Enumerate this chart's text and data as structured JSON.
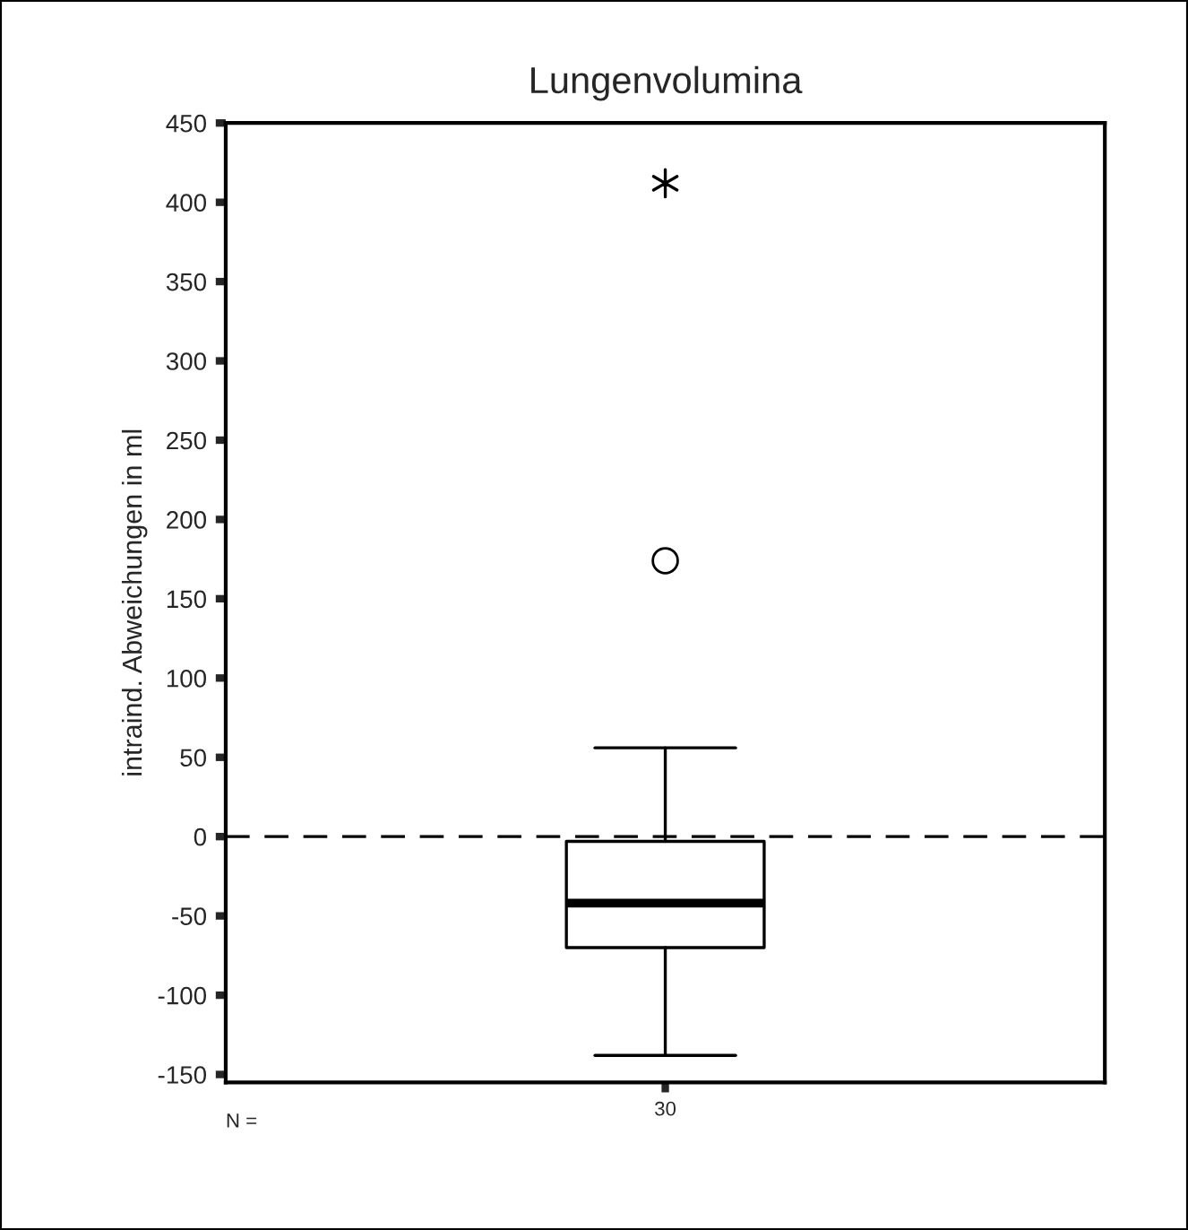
{
  "chart_data": {
    "type": "box",
    "title": "Lungenvolumina",
    "ylabel": "intraind. Abweichungen in ml",
    "categories": [
      "30"
    ],
    "boxes": [
      {
        "low": -138,
        "q1": -70,
        "median": -42,
        "q3": -3,
        "high": 56,
        "outliers": [
          174
        ]
      }
    ],
    "series": [
      {
        "type": "scatter",
        "marker": "cross",
        "color": "#000000",
        "x": [
          "30"
        ],
        "values": [
          412
        ]
      }
    ],
    "ylim": [
      -155,
      450
    ],
    "yticks": [
      -150,
      -100,
      -50,
      0,
      50,
      100,
      150,
      200,
      250,
      300,
      350,
      400,
      450
    ],
    "ref_lines": [
      {
        "axis": "y",
        "value": 0,
        "line_style": "dashed",
        "color": "#000000"
      }
    ],
    "annotations": [
      "N ="
    ],
    "grid": false,
    "legend": false
  }
}
